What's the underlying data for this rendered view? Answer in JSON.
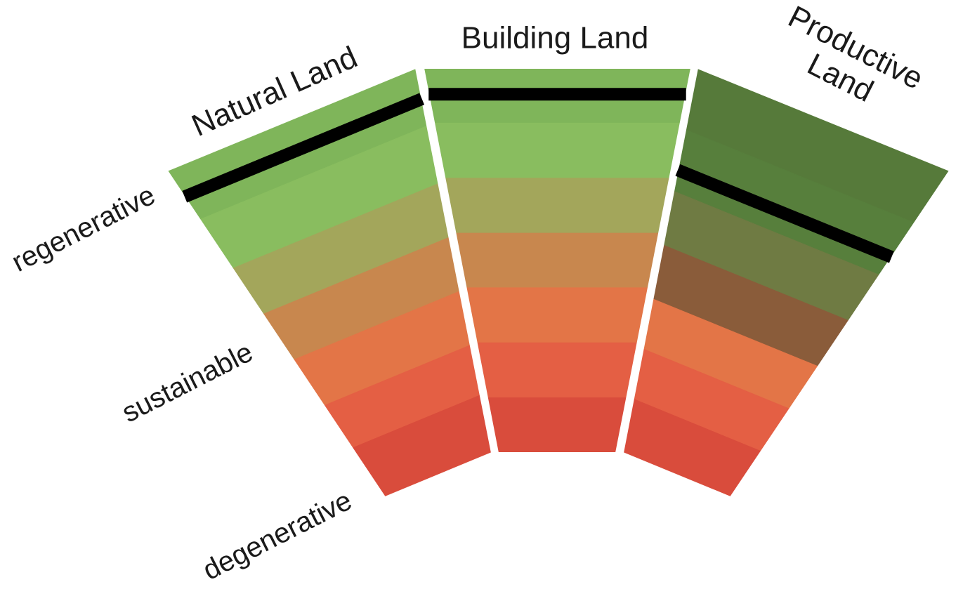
{
  "sectors": [
    {
      "id": "natural",
      "title_lines": [
        "Natural Land"
      ],
      "band_colors": [
        "#7fb55a",
        "#89bd5f",
        "#a3a65b",
        "#c8874e",
        "#e37547",
        "#e45f44",
        "#d94c3c"
      ],
      "band_split": "mostly-equal",
      "marker": "upper band"
    },
    {
      "id": "building",
      "title_lines": [
        "Building Land"
      ],
      "band_colors": [
        "#7fb55a",
        "#89bd5f",
        "#a3a65b",
        "#c8874e",
        "#e37547",
        "#e45f44",
        "#d94c3c"
      ],
      "band_split": "equal",
      "marker": "upper band"
    },
    {
      "id": "productive",
      "title_lines": [
        "Productive",
        "Land"
      ],
      "band_colors": [
        "#567a3a",
        "#577f3c",
        "#6f7b43",
        "#8a5c3a",
        "#e37547",
        "#e45f44",
        "#d94c3c"
      ],
      "band_split": "darker-greens",
      "marker": "second band"
    }
  ],
  "scale_labels": [
    "regenerative",
    "sustainable",
    "degenerative"
  ],
  "marker_color": "#000000",
  "divider_color": "#ffffff"
}
